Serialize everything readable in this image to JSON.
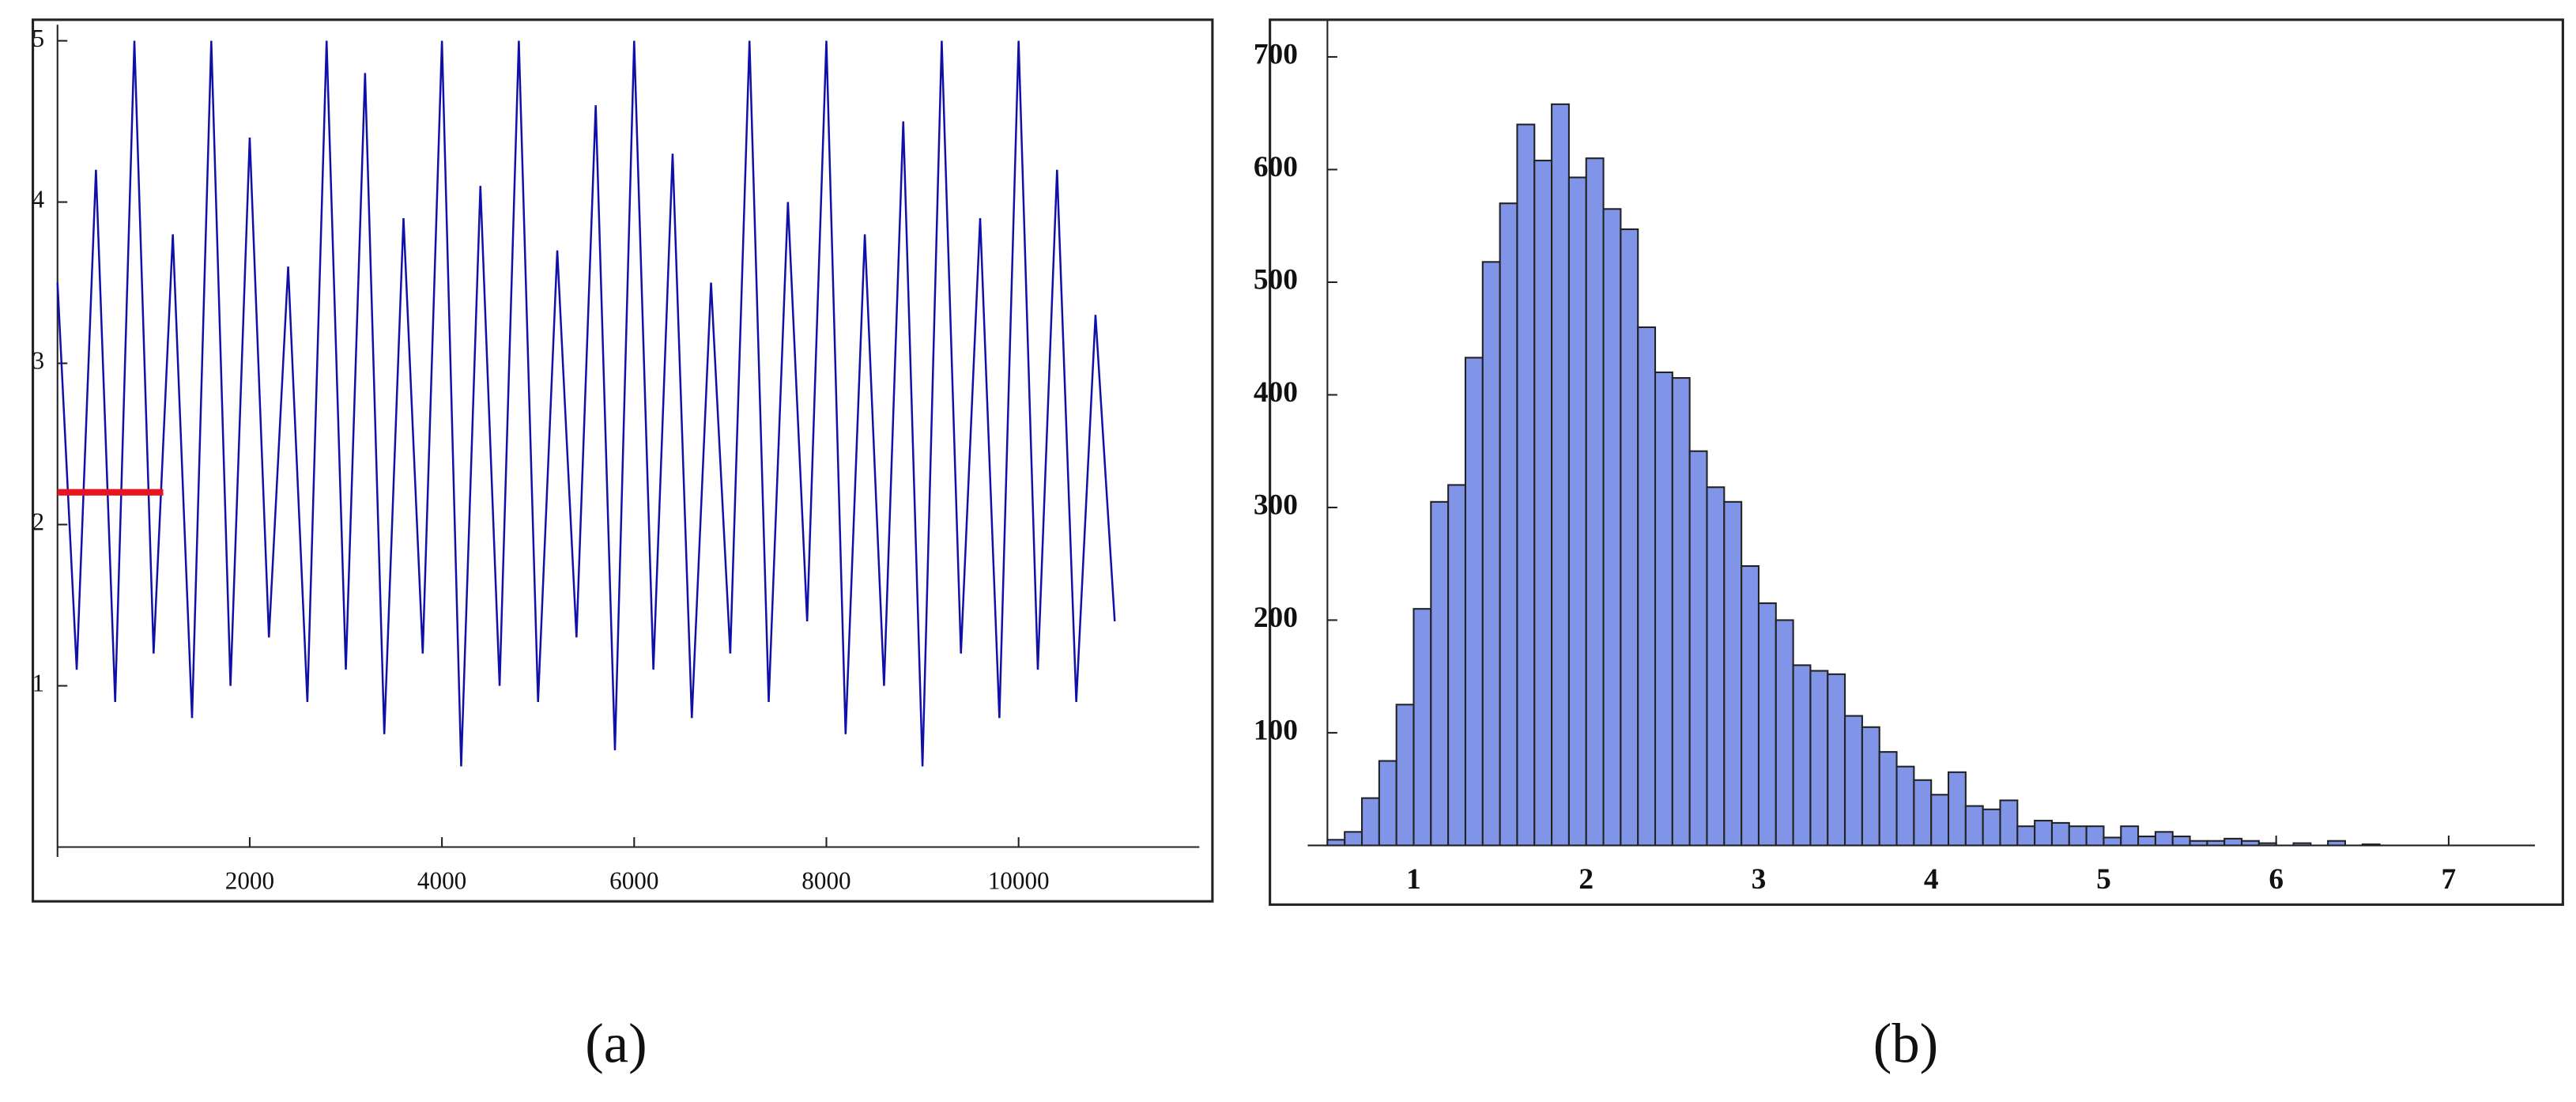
{
  "chart_data": [
    {
      "type": "line",
      "color": "#1010a8",
      "x": [
        0,
        200,
        400,
        600,
        800,
        1000,
        1200,
        1400,
        1600,
        1800,
        2000,
        2200,
        2400,
        2600,
        2800,
        3000,
        3200,
        3400,
        3600,
        3800,
        4000,
        4200,
        4400,
        4600,
        4800,
        5000,
        5200,
        5400,
        5600,
        5800,
        6000,
        6200,
        6400,
        6600,
        6800,
        7000,
        7200,
        7400,
        7600,
        7800,
        8000,
        8200,
        8400,
        8600,
        8800,
        9000,
        9200,
        9400,
        9600,
        9800,
        10000,
        10200,
        10400,
        10600,
        10800,
        11000
      ],
      "values": [
        3.5,
        1.1,
        4.2,
        0.9,
        5,
        1.2,
        3.8,
        0.8,
        5,
        1.0,
        4.4,
        1.3,
        3.6,
        0.9,
        5,
        1.1,
        4.8,
        0.7,
        3.9,
        1.2,
        5,
        0.5,
        4.1,
        1.0,
        5,
        0.9,
        3.7,
        1.3,
        4.6,
        0.6,
        5,
        1.1,
        4.3,
        0.8,
        3.5,
        1.2,
        5,
        0.9,
        4.0,
        1.4,
        5,
        0.7,
        3.8,
        1.0,
        4.5,
        0.5,
        5,
        1.2,
        3.9,
        0.8,
        5,
        1.1,
        4.2,
        0.9,
        3.3,
        1.4
      ],
      "hline": {
        "y": 2.2,
        "x": [
          0,
          1100
        ],
        "color": "#e8141e"
      },
      "xlim": [
        0,
        11880
      ],
      "ylim": [
        0,
        5.1
      ],
      "xticks": [
        2000,
        4000,
        6000,
        8000,
        10000
      ],
      "yticks": [
        1,
        2,
        3,
        4,
        5
      ],
      "caption": "(a)"
    },
    {
      "type": "histogram",
      "color": "#8095e8",
      "bins": [
        0.5,
        0.6,
        0.7,
        0.8,
        0.9,
        1.0,
        1.1,
        1.2,
        1.3,
        1.4,
        1.5,
        1.6,
        1.7,
        1.8,
        1.9,
        2.0,
        2.1,
        2.2,
        2.3,
        2.4,
        2.5,
        2.6,
        2.7,
        2.8,
        2.9,
        3.0,
        3.1,
        3.2,
        3.3,
        3.4,
        3.5,
        3.6,
        3.7,
        3.8,
        3.9,
        4.0,
        4.1,
        4.2,
        4.3,
        4.4,
        4.5,
        4.6,
        4.7,
        4.8,
        4.9,
        5.0,
        5.1,
        5.2,
        5.3,
        5.4,
        5.5,
        5.6,
        5.7,
        5.8,
        5.9,
        6.0,
        6.1,
        6.2,
        6.3,
        6.4,
        6.5,
        6.6
      ],
      "values": [
        5,
        12,
        42,
        75,
        125,
        210,
        305,
        320,
        433,
        518,
        570,
        640,
        608,
        658,
        593,
        610,
        565,
        547,
        460,
        420,
        415,
        350,
        318,
        305,
        248,
        215,
        200,
        160,
        155,
        152,
        115,
        105,
        83,
        70,
        58,
        45,
        65,
        35,
        32,
        40,
        17,
        22,
        20,
        17,
        17,
        7,
        17,
        8,
        12,
        8,
        4,
        4,
        6,
        4,
        2,
        0,
        2,
        0,
        4,
        0,
        1
      ],
      "xlim": [
        0.5,
        7.5
      ],
      "ylim": [
        0,
        733
      ],
      "xticks": [
        1,
        2,
        3,
        4,
        5,
        6,
        7
      ],
      "yticks": [
        100,
        200,
        300,
        400,
        500,
        600,
        700
      ],
      "caption": "(b)"
    }
  ]
}
